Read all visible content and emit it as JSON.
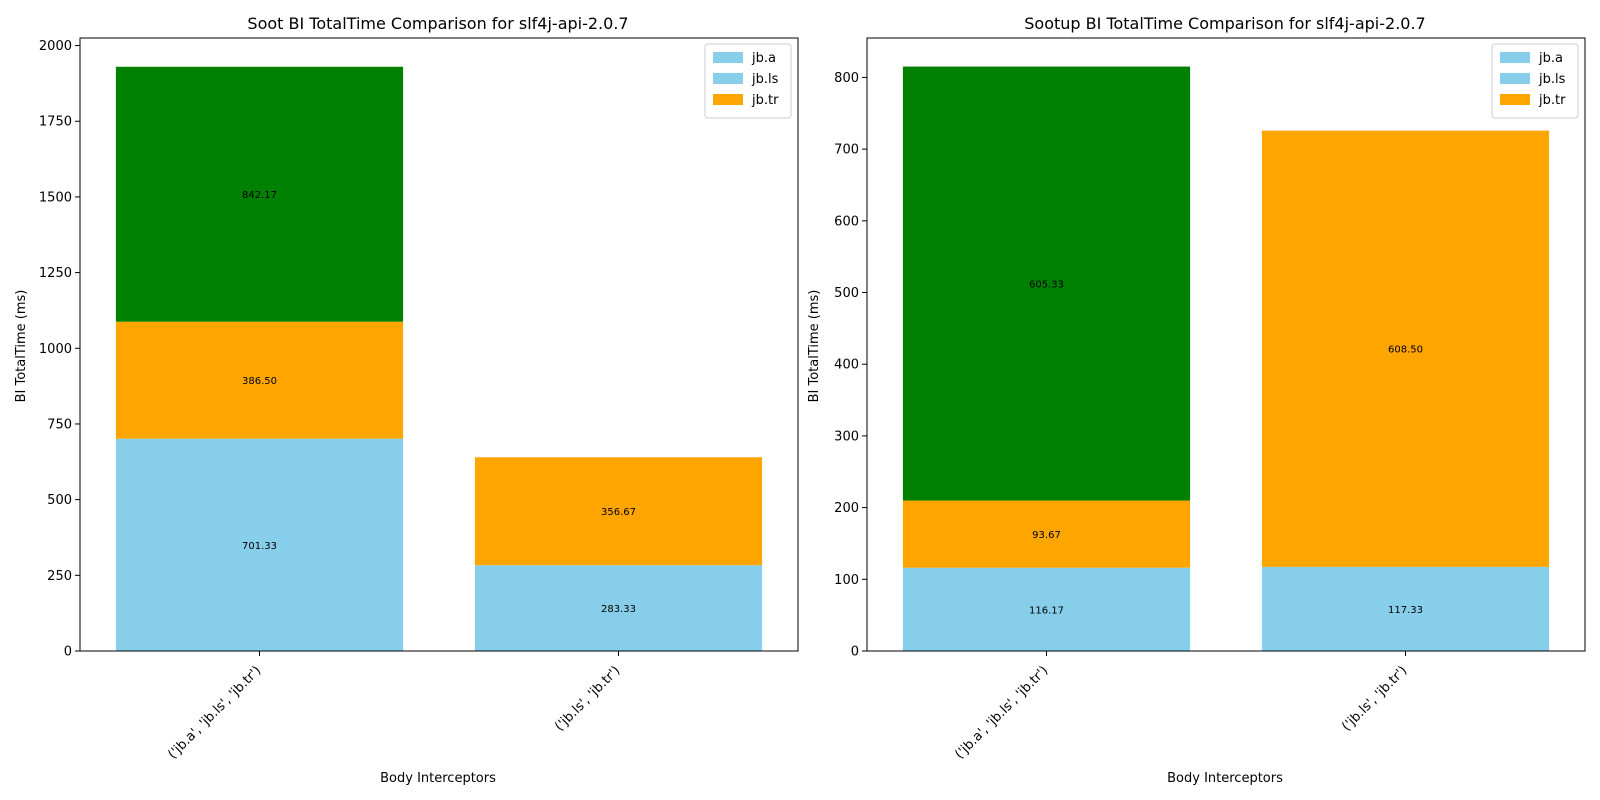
{
  "chart_data": [
    {
      "type": "bar",
      "stacked": true,
      "title": "Soot BI TotalTime Comparison for slf4j-api-2.0.7",
      "xlabel": "Body Interceptors",
      "ylabel": "BI TotalTime (ms)",
      "ylim": [
        0,
        2025
      ],
      "yticks": [
        0,
        250,
        500,
        750,
        1000,
        1250,
        1500,
        1750,
        2000
      ],
      "grid": false,
      "legend_position": "top-right",
      "legend": [
        {
          "label": "jb.a",
          "color": "#87ceeb"
        },
        {
          "label": "jb.ls",
          "color": "#87ceeb"
        },
        {
          "label": "jb.tr",
          "color": "#ffa500"
        }
      ],
      "categories": [
        "('jb.a', 'jb.ls', 'jb.tr')",
        "('jb.ls', 'jb.tr')"
      ],
      "bars": [
        [
          {
            "value": 701.33,
            "label": "701.33",
            "color": "#87ceeb"
          },
          {
            "value": 386.5,
            "label": "386.50",
            "color": "#ffa500"
          },
          {
            "value": 842.17,
            "label": "842.17",
            "color": "#008000"
          }
        ],
        [
          {
            "value": 283.33,
            "label": "283.33",
            "color": "#87ceeb"
          },
          {
            "value": 356.67,
            "label": "356.67",
            "color": "#ffa500"
          }
        ]
      ]
    },
    {
      "type": "bar",
      "stacked": true,
      "title": "Sootup BI TotalTime Comparison for slf4j-api-2.0.7",
      "xlabel": "Body Interceptors",
      "ylabel": "BI TotalTime (ms)",
      "ylim": [
        0,
        855
      ],
      "yticks": [
        0,
        100,
        200,
        300,
        400,
        500,
        600,
        700,
        800
      ],
      "grid": false,
      "legend_position": "top-right",
      "legend": [
        {
          "label": "jb.a",
          "color": "#87ceeb"
        },
        {
          "label": "jb.ls",
          "color": "#87ceeb"
        },
        {
          "label": "jb.tr",
          "color": "#ffa500"
        }
      ],
      "categories": [
        "('jb.a', 'jb.ls', 'jb.tr')",
        "('jb.ls', 'jb.tr')"
      ],
      "bars": [
        [
          {
            "value": 116.17,
            "label": "116.17",
            "color": "#87ceeb"
          },
          {
            "value": 93.67,
            "label": "93.67",
            "color": "#ffa500"
          },
          {
            "value": 605.33,
            "label": "605.33",
            "color": "#008000"
          }
        ],
        [
          {
            "value": 117.33,
            "label": "117.33",
            "color": "#87ceeb"
          },
          {
            "value": 608.5,
            "label": "608.50",
            "color": "#ffa500"
          }
        ]
      ]
    }
  ]
}
